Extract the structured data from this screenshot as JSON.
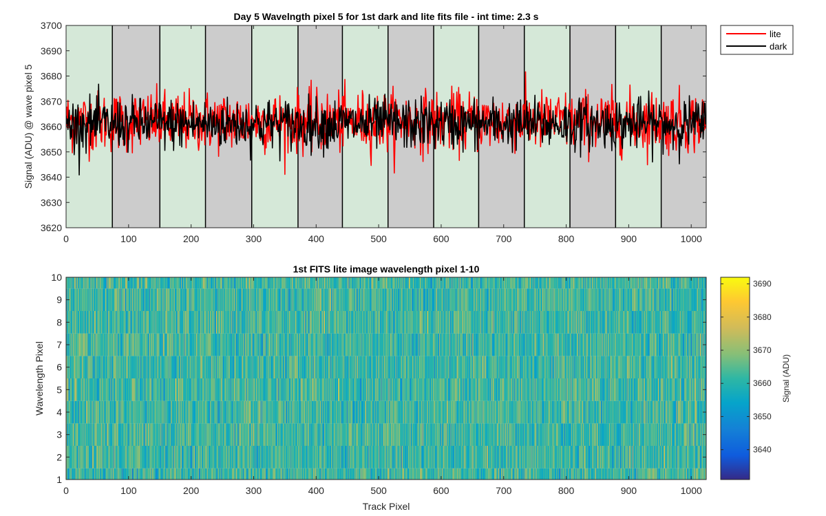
{
  "chart_data": [
    {
      "type": "line",
      "title": "Day 5 Wavelngth pixel 5 for 1st dark and lite fits file - int time: 2.3 s",
      "xlabel": "",
      "ylabel": "Signal (ADU) @ wave pixel 5",
      "xlim": [
        0,
        1024
      ],
      "ylim": [
        3620,
        3700
      ],
      "xticks": [
        "0",
        "100",
        "200",
        "300",
        "400",
        "500",
        "600",
        "700",
        "800",
        "900",
        "1000"
      ],
      "yticks": [
        "3620",
        "3630",
        "3640",
        "3650",
        "3660",
        "3670",
        "3680",
        "3690",
        "3700"
      ],
      "legend": {
        "placement": "outside-top-right",
        "entries": [
          "lite",
          "dark"
        ]
      },
      "series": [
        {
          "name": "lite",
          "color": "#ff0000",
          "mean": 3662,
          "noise_sd": 6
        },
        {
          "name": "dark",
          "color": "#000000",
          "mean": 3661,
          "noise_sd": 5
        }
      ],
      "background_bands": {
        "boundaries": [
          0,
          74,
          150,
          223,
          297,
          371,
          442,
          515,
          588,
          660,
          733,
          806,
          879,
          952,
          1024
        ],
        "colors": [
          "#d5e8d8",
          "#cccccc"
        ],
        "pattern": "alternating, starting green"
      },
      "grid": false
    },
    {
      "type": "heatmap",
      "title": "1st FITS lite image wavelength pixel 1-10",
      "xlabel": "Track Pixel",
      "ylabel": "Wavelength Pixel",
      "xlim": [
        0,
        1024
      ],
      "ylim": [
        1,
        10
      ],
      "xticks": [
        "0",
        "100",
        "200",
        "300",
        "400",
        "500",
        "600",
        "700",
        "800",
        "900",
        "1000"
      ],
      "yticks": [
        "1",
        "2",
        "3",
        "4",
        "5",
        "6",
        "7",
        "8",
        "9",
        "10"
      ],
      "rows": 10,
      "columns": 1024,
      "value_mean": 3662,
      "value_sd": 6,
      "colormap": "parula",
      "colorbar": {
        "label": "Signal (ADU)",
        "range": [
          3631,
          3692
        ],
        "ticks": [
          "3640",
          "3650",
          "3660",
          "3670",
          "3680",
          "3690"
        ]
      },
      "grid": false
    }
  ]
}
